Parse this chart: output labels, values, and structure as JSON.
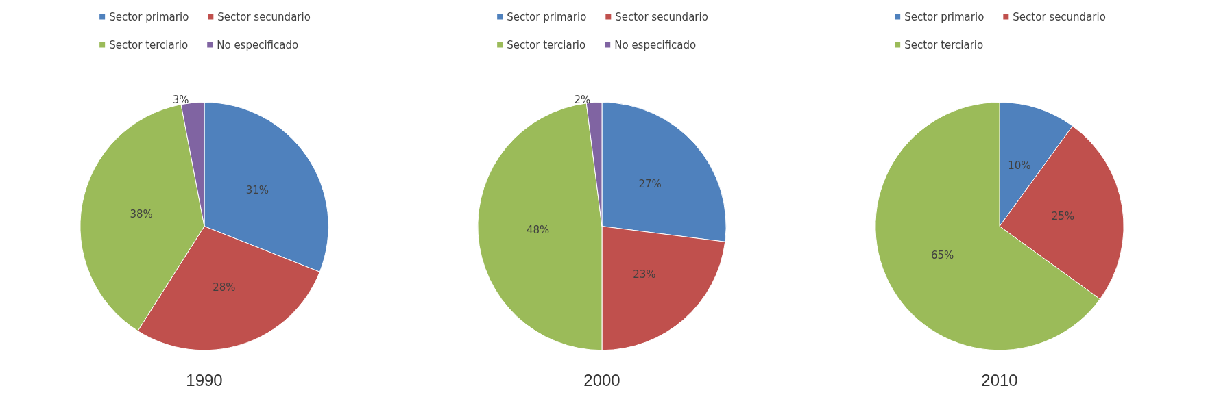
{
  "chart_data": [
    {
      "type": "pie",
      "title": "1990",
      "categories": [
        "Sector primario",
        "Sector secundario",
        "Sector terciario",
        "No especificado"
      ],
      "values": [
        31,
        28,
        38,
        3
      ],
      "value_labels": [
        "31%",
        "28%",
        "38%",
        "3%"
      ],
      "colors": [
        "#4f81bd",
        "#c0504d",
        "#9bbb59",
        "#8064a2"
      ],
      "legend": "top"
    },
    {
      "type": "pie",
      "title": "2000",
      "categories": [
        "Sector primario",
        "Sector secundario",
        "Sector terciario",
        "No especificado"
      ],
      "values": [
        27,
        23,
        48,
        2
      ],
      "value_labels": [
        "27%",
        "23%",
        "48%",
        "2%"
      ],
      "colors": [
        "#4f81bd",
        "#c0504d",
        "#9bbb59",
        "#8064a2"
      ],
      "legend": "top"
    },
    {
      "type": "pie",
      "title": "2010",
      "categories": [
        "Sector primario",
        "Sector secundario",
        "Sector terciario"
      ],
      "values": [
        10,
        25,
        65
      ],
      "value_labels": [
        "10%",
        "25%",
        "65%"
      ],
      "colors": [
        "#4f81bd",
        "#c0504d",
        "#9bbb59"
      ],
      "legend": "top"
    }
  ]
}
